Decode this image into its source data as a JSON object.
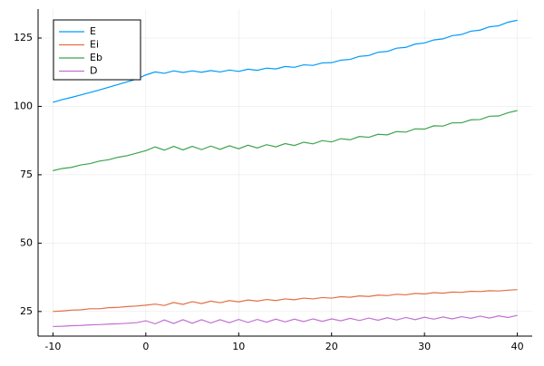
{
  "chart_data": {
    "type": "line",
    "x": [
      -10,
      -9,
      -8,
      -7,
      -6,
      -5,
      -4,
      -3,
      -2,
      -1,
      0,
      1,
      2,
      3,
      4,
      5,
      6,
      7,
      8,
      9,
      10,
      11,
      12,
      13,
      14,
      15,
      16,
      17,
      18,
      19,
      20,
      21,
      22,
      23,
      24,
      25,
      26,
      27,
      28,
      29,
      30,
      31,
      32,
      33,
      34,
      35,
      36,
      37,
      38,
      39,
      40
    ],
    "series": [
      {
        "name": "E",
        "color": "#009af9",
        "values": [
          101.5,
          102.5,
          103.3,
          104.2,
          105.1,
          106.0,
          107.0,
          108.0,
          109.0,
          110.0,
          111.5,
          112.6,
          112.1,
          113.0,
          112.4,
          113.0,
          112.5,
          113.1,
          112.6,
          113.3,
          112.8,
          113.6,
          113.2,
          114.0,
          113.7,
          114.6,
          114.3,
          115.2,
          115.0,
          115.9,
          116.0,
          116.9,
          117.2,
          118.3,
          118.6,
          119.8,
          120.1,
          121.3,
          121.6,
          122.8,
          123.2,
          124.3,
          124.7,
          125.9,
          126.3,
          127.5,
          127.9,
          129.1,
          129.5,
          130.8,
          131.5
        ]
      },
      {
        "name": "Ei",
        "color": "#e26f46",
        "values": [
          25.0,
          25.2,
          25.5,
          25.6,
          26.0,
          26.0,
          26.4,
          26.5,
          26.8,
          27.0,
          27.3,
          27.7,
          27.2,
          28.3,
          27.6,
          28.6,
          27.9,
          28.8,
          28.2,
          29.0,
          28.5,
          29.2,
          28.8,
          29.4,
          29.0,
          29.6,
          29.3,
          29.9,
          29.6,
          30.1,
          29.9,
          30.4,
          30.2,
          30.7,
          30.5,
          31.0,
          30.8,
          31.3,
          31.1,
          31.6,
          31.4,
          31.9,
          31.7,
          32.1,
          32.0,
          32.4,
          32.3,
          32.6,
          32.5,
          32.8,
          33.0
        ]
      },
      {
        "name": "Eb",
        "color": "#3da44d",
        "values": [
          76.5,
          77.3,
          77.7,
          78.6,
          79.1,
          80.0,
          80.5,
          81.4,
          82.0,
          82.9,
          83.8,
          85.2,
          84.0,
          85.4,
          84.1,
          85.4,
          84.2,
          85.5,
          84.3,
          85.6,
          84.5,
          85.8,
          84.8,
          86.0,
          85.2,
          86.4,
          85.7,
          86.9,
          86.3,
          87.5,
          87.0,
          88.2,
          87.8,
          89.0,
          88.7,
          89.8,
          89.6,
          90.8,
          90.6,
          91.8,
          91.7,
          92.9,
          92.8,
          94.0,
          94.0,
          95.1,
          95.2,
          96.4,
          96.5,
          97.7,
          98.5
        ]
      },
      {
        "name": "D",
        "color": "#c271d2",
        "values": [
          19.5,
          19.6,
          19.8,
          19.9,
          20.1,
          20.2,
          20.4,
          20.5,
          20.7,
          20.9,
          21.6,
          20.5,
          21.9,
          20.6,
          22.0,
          20.7,
          22.0,
          20.8,
          22.0,
          20.9,
          22.1,
          21.0,
          22.1,
          21.1,
          22.2,
          21.2,
          22.2,
          21.3,
          22.3,
          21.4,
          22.3,
          21.6,
          22.5,
          21.7,
          22.6,
          21.8,
          22.7,
          21.9,
          22.8,
          22.0,
          22.9,
          22.2,
          23.0,
          22.3,
          23.1,
          22.5,
          23.3,
          22.6,
          23.4,
          22.8,
          23.6
        ]
      }
    ],
    "xlim": [
      -11.6,
      41.6
    ],
    "xticks": [
      -10,
      0,
      10,
      20,
      30,
      40
    ],
    "ylim": [
      16,
      135.6
    ],
    "yticks": [
      25,
      50,
      75,
      100,
      125
    ],
    "grid": true,
    "legend": "top-left"
  }
}
